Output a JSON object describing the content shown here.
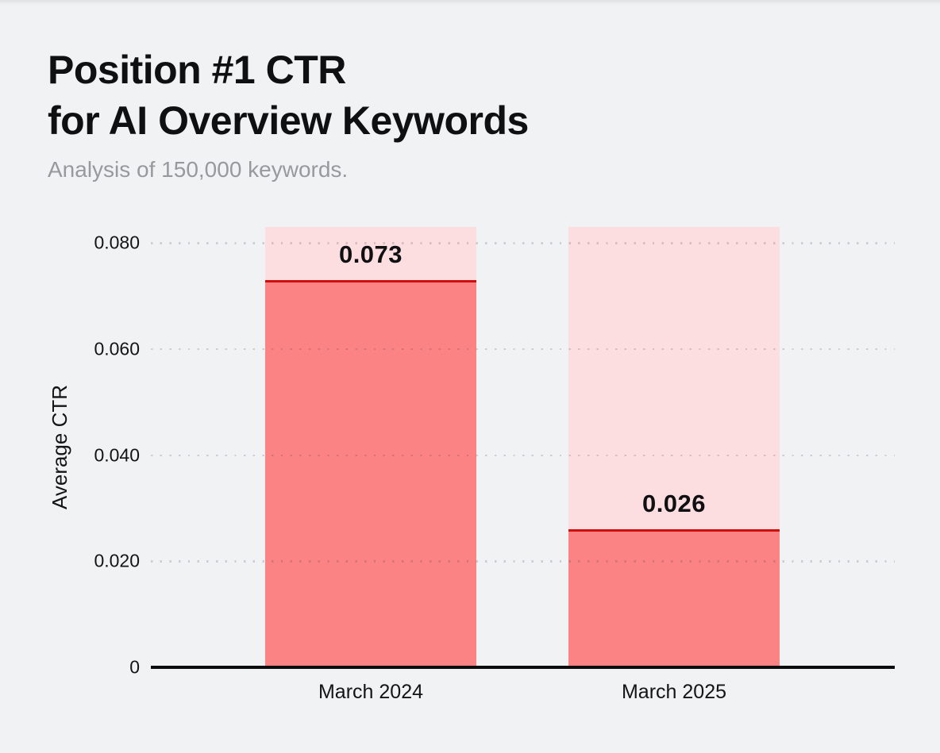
{
  "header": {
    "title_lines": [
      "Position #1 CTR",
      "for AI Overview Keywords"
    ],
    "subtitle": "Analysis of 150,000 keywords."
  },
  "chart_data": {
    "type": "bar",
    "title": "Position #1 CTR for AI Overview Keywords",
    "subtitle": "Analysis of 150,000 keywords.",
    "categories": [
      "March 2024",
      "March 2025"
    ],
    "values": [
      0.073,
      0.026
    ],
    "value_labels": [
      "0.073",
      "0.026"
    ],
    "xlabel": "",
    "ylabel": "Average CTR",
    "ylim": [
      0,
      0.083
    ],
    "yticks": [
      0,
      0.02,
      0.04,
      0.06,
      0.08
    ],
    "ytick_labels": [
      "0",
      "0.020",
      "0.040",
      "0.060",
      "0.080"
    ],
    "grid": "horizontal-dotted",
    "legend": "none",
    "colors": {
      "background": "#F1F2F4",
      "bar_fill": "#FB8383",
      "bar_track": "#FCDDE0",
      "bar_value_line": "#CF0E0E",
      "axis_line": "#0B0C0E",
      "grid_dots": "rgba(40,45,60,0.18)",
      "title_text": "#0F1012",
      "subtitle_text": "#97999D",
      "tick_text": "#131416"
    }
  }
}
